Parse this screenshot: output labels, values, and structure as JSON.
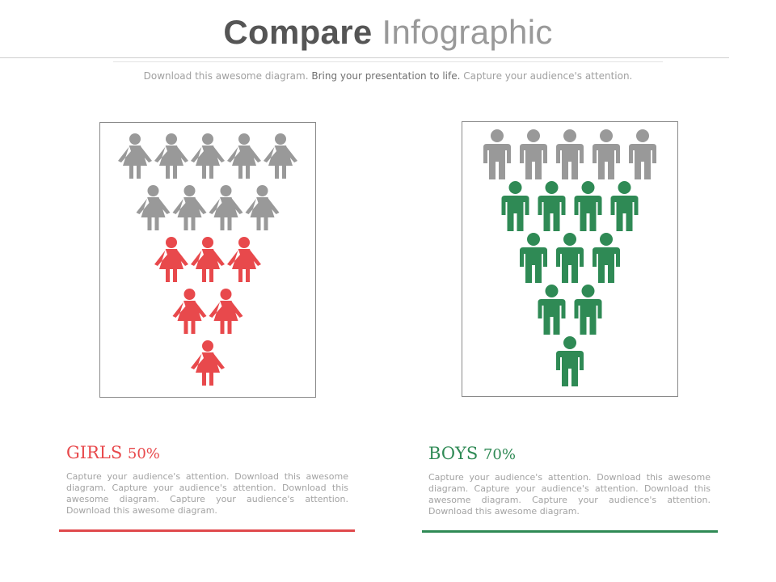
{
  "header": {
    "title_strong": "Compare",
    "title_light": "Infographic",
    "subtitle_part1": "Download this awesome diagram.",
    "subtitle_part2": "Bring your presentation to life.",
    "subtitle_part3": "Capture your audience's attention."
  },
  "colors": {
    "girls_accent": "#e8494c",
    "boys_accent": "#2f8a55",
    "neutral_figure": "#999999"
  },
  "girls": {
    "label": "GIRLS",
    "percent": "50%",
    "figure_icon": "female-person-icon",
    "rows": [
      5,
      4,
      3,
      2,
      1
    ],
    "highlighted_rows": 3,
    "description": "Capture your audience's attention. Download this awesome diagram. Capture your audience's attention. Download this awesome diagram. Capture your audience's attention. Download this awesome diagram."
  },
  "boys": {
    "label": "BOYS",
    "percent": "70%",
    "figure_icon": "male-person-icon",
    "rows": [
      5,
      4,
      3,
      2,
      1
    ],
    "highlighted_rows": 4,
    "description": "Capture your audience's attention. Download this awesome diagram. Capture your audience's attention. Download this awesome diagram. Capture your audience's attention. Download this awesome diagram."
  }
}
